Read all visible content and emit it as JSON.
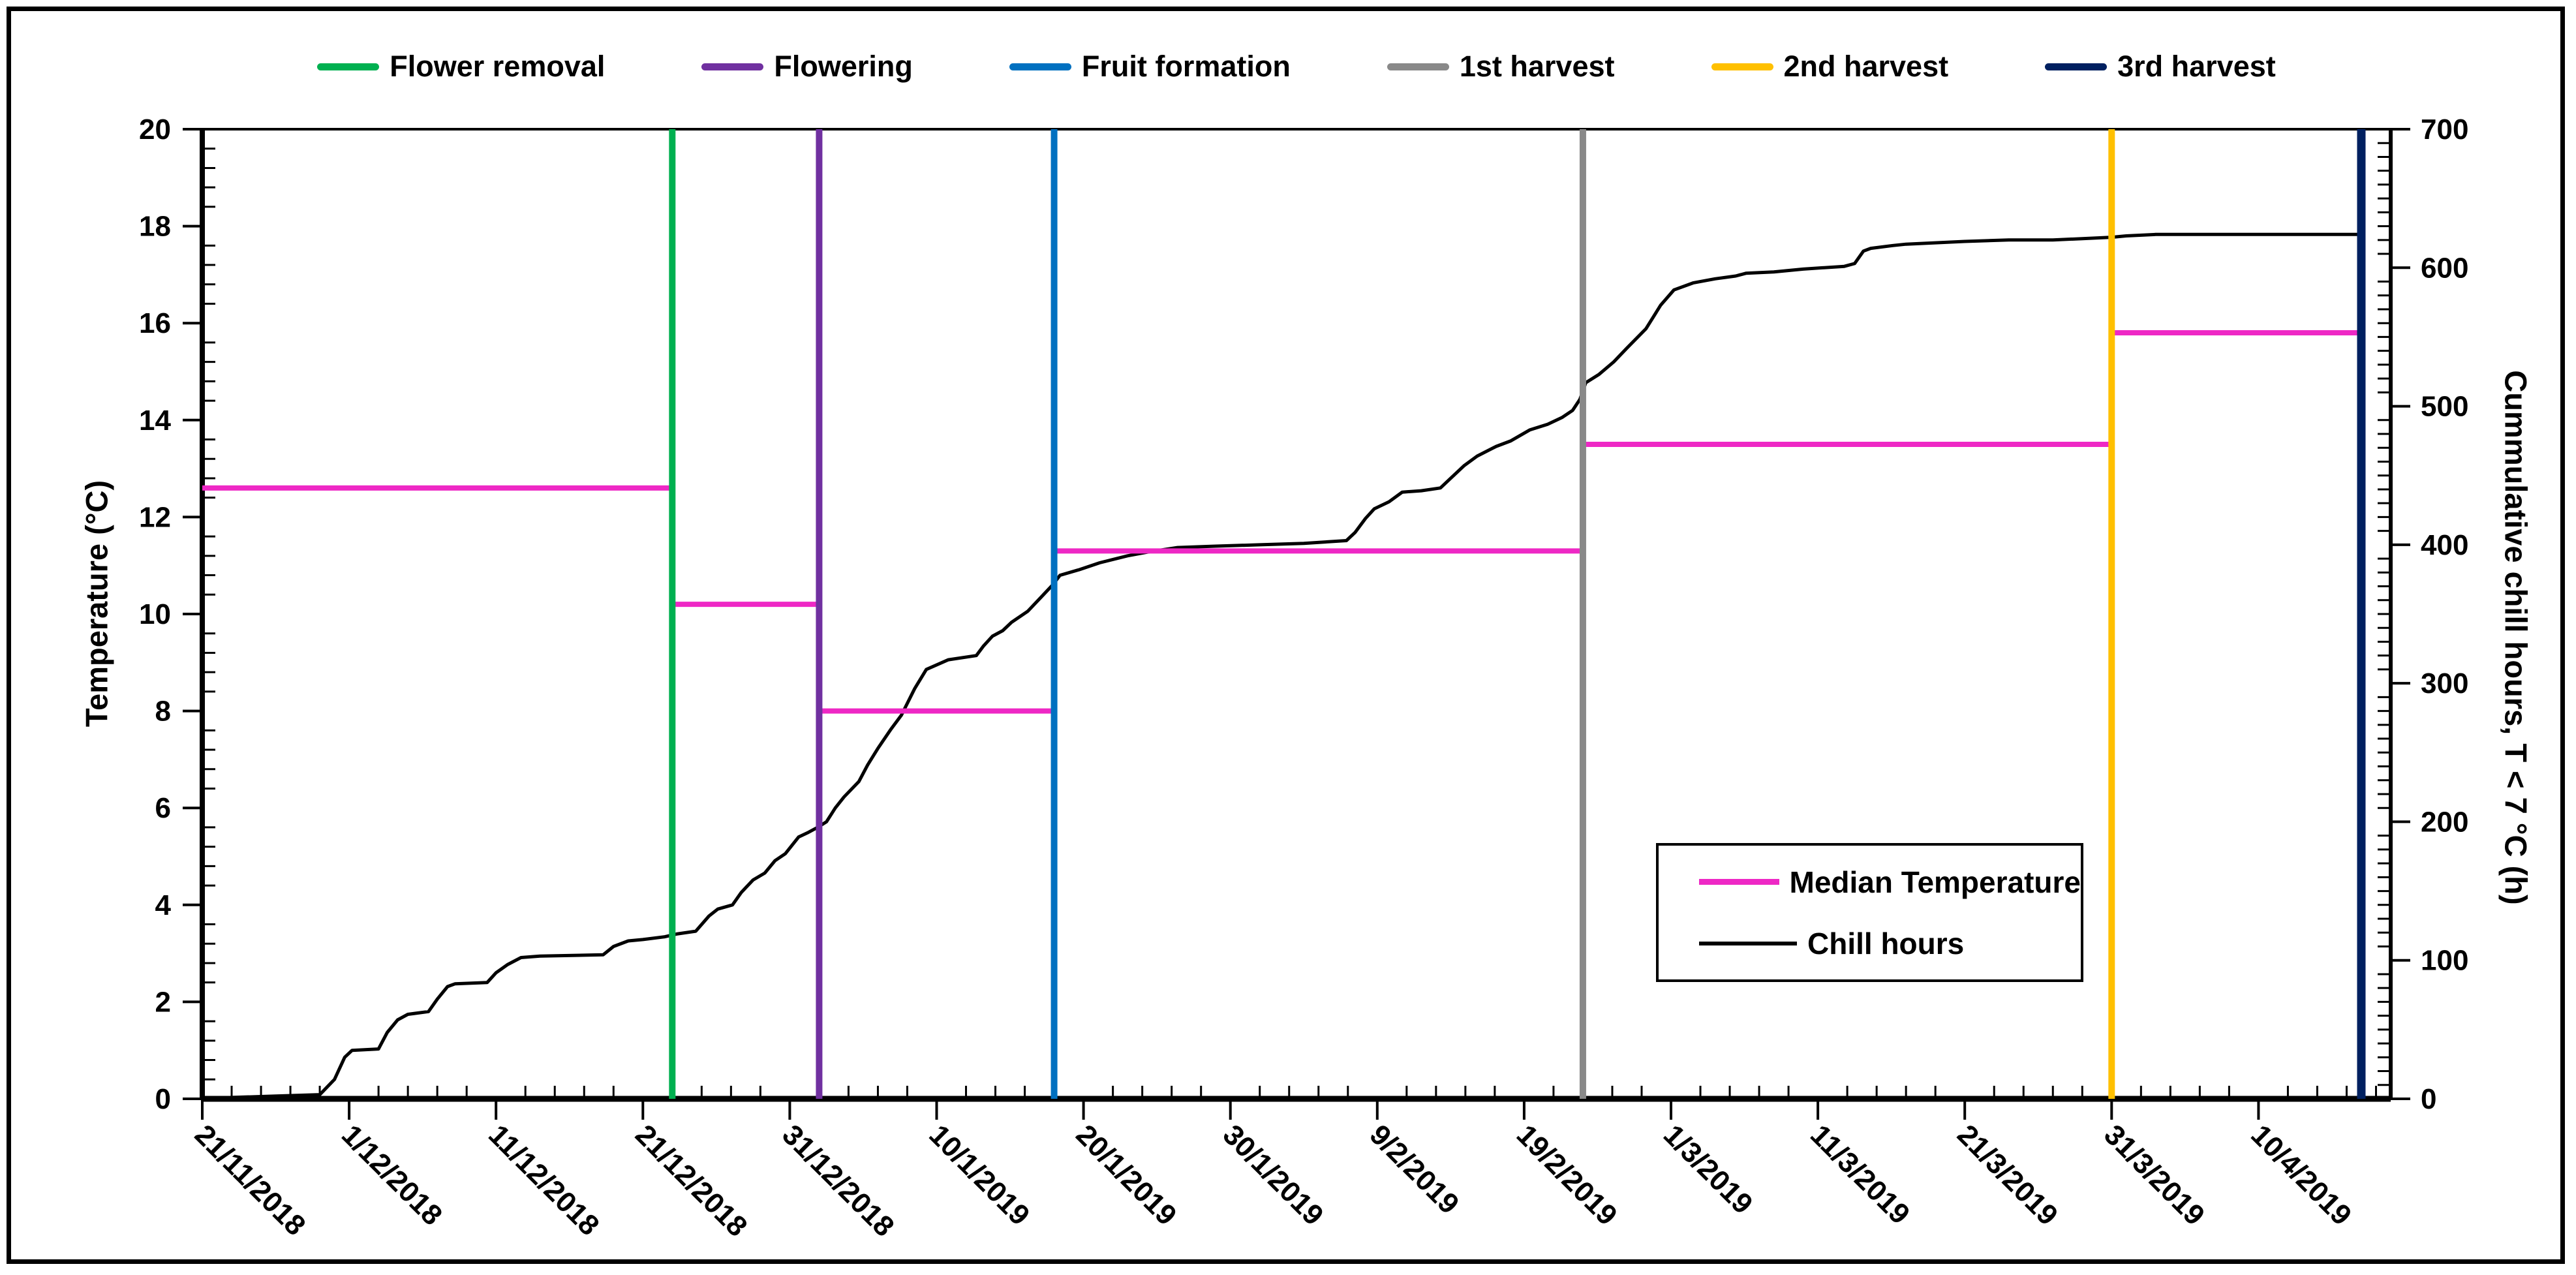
{
  "figure": {
    "top_legend": [
      {
        "label": "Flower removal",
        "color": "#00B050"
      },
      {
        "label": "Flowering",
        "color": "#7030A0"
      },
      {
        "label": "Fruit formation",
        "color": "#0070C0"
      },
      {
        "label": "1st harvest",
        "color": "#898989"
      },
      {
        "label": "2nd harvest",
        "color": "#FFC000"
      },
      {
        "label": "3rd harvest",
        "color": "#002060"
      }
    ],
    "inner_legend": [
      {
        "label": "Median Temperature",
        "color": "#EE28C5",
        "thickness": 9
      },
      {
        "label": "Chill hours",
        "color": "#000000",
        "thickness": 6
      }
    ]
  },
  "chart_data": {
    "type": "line",
    "title": "",
    "x_axis": {
      "tick_labels": [
        "21/11/2018",
        "1/12/2018",
        "11/12/2018",
        "21/12/2018",
        "31/12/2018",
        "10/1/2019",
        "20/1/2019",
        "30/1/2019",
        "9/2/2019",
        "19/2/2019",
        "1/3/2019",
        "11/3/2019",
        "21/3/2019",
        "31/3/2019",
        "10/4/2019"
      ],
      "tick_interval_days": 10,
      "minor_tick_days": 2,
      "domain_days": [
        0,
        149
      ]
    },
    "y_left": {
      "label": "Temperature (°C)",
      "min": 0,
      "max": 20,
      "major_step": 2,
      "minor_step": 0.4,
      "tick_labels": [
        0,
        2,
        4,
        6,
        8,
        10,
        12,
        14,
        16,
        18,
        20
      ]
    },
    "y_right": {
      "label": "Cummulative chill hours, T < 7 °C (h)",
      "min": 0,
      "max": 700,
      "major_step": 100,
      "minor_step": 10,
      "tick_labels": [
        0,
        100,
        200,
        300,
        400,
        500,
        600,
        700
      ]
    },
    "event_lines": [
      {
        "name": "Flower removal",
        "color": "#00B050",
        "day": 32,
        "date_est": "23/12/2018",
        "width": 10
      },
      {
        "name": "Flowering",
        "color": "#7030A0",
        "day": 42,
        "date_est": "2/1/2019",
        "width": 10
      },
      {
        "name": "Fruit formation",
        "color": "#0070C0",
        "day": 58,
        "date_est": "18/1/2019",
        "width": 10
      },
      {
        "name": "1st harvest",
        "color": "#898989",
        "day": 94,
        "date_est": "23/2/2019",
        "width": 10
      },
      {
        "name": "2nd harvest",
        "color": "#FFC000",
        "day": 130,
        "date_est": "31/3/2019",
        "width": 10
      },
      {
        "name": "3rd harvest",
        "color": "#002060",
        "day": 147,
        "date_est": "17/4/2019",
        "width": 13
      }
    ],
    "median_temperature": {
      "name": "Median Temperature",
      "color": "#EE28C5",
      "unit": "°C",
      "segments": [
        {
          "from_day": 0,
          "to_day": 32,
          "value": 12.6
        },
        {
          "from_day": 32,
          "to_day": 42,
          "value": 10.2
        },
        {
          "from_day": 42,
          "to_day": 58,
          "value": 8.0
        },
        {
          "from_day": 58,
          "to_day": 94,
          "value": 11.3
        },
        {
          "from_day": 94,
          "to_day": 130,
          "value": 13.5
        },
        {
          "from_day": 130,
          "to_day": 147,
          "value": 15.8
        }
      ]
    },
    "chill_hours": {
      "name": "Chill hours",
      "color": "#000000",
      "unit": "h",
      "final_total": 624,
      "points": [
        [
          0,
          0
        ],
        [
          2,
          1
        ],
        [
          5,
          2
        ],
        [
          8,
          3
        ],
        [
          9,
          14
        ],
        [
          9.7,
          30
        ],
        [
          10.2,
          35
        ],
        [
          12,
          36
        ],
        [
          12.6,
          48
        ],
        [
          13.3,
          57
        ],
        [
          14,
          61
        ],
        [
          15.4,
          63
        ],
        [
          16,
          72
        ],
        [
          16.7,
          81
        ],
        [
          17.2,
          83
        ],
        [
          19.4,
          84
        ],
        [
          20,
          91
        ],
        [
          20.8,
          97
        ],
        [
          21.7,
          102
        ],
        [
          23,
          103
        ],
        [
          27.3,
          104
        ],
        [
          28,
          110
        ],
        [
          29,
          114
        ],
        [
          30,
          115
        ],
        [
          31.5,
          117
        ],
        [
          32.3,
          119
        ],
        [
          33.6,
          121
        ],
        [
          34.5,
          132
        ],
        [
          35.1,
          137
        ],
        [
          36.1,
          140
        ],
        [
          36.7,
          149
        ],
        [
          37.5,
          158
        ],
        [
          38.3,
          163
        ],
        [
          39,
          172
        ],
        [
          39.7,
          177
        ],
        [
          40.6,
          189
        ],
        [
          41.2,
          192
        ],
        [
          41.9,
          196
        ],
        [
          42.5,
          200
        ],
        [
          43.1,
          210
        ],
        [
          43.7,
          218
        ],
        [
          44.7,
          229
        ],
        [
          45.3,
          241
        ],
        [
          46,
          253
        ],
        [
          46.9,
          267
        ],
        [
          47.6,
          277
        ],
        [
          48.5,
          296
        ],
        [
          49.3,
          310
        ],
        [
          50.8,
          317
        ],
        [
          52.7,
          320
        ],
        [
          53.2,
          327
        ],
        [
          53.8,
          334
        ],
        [
          54.5,
          338
        ],
        [
          55.1,
          344
        ],
        [
          56.2,
          352
        ],
        [
          57.1,
          362
        ],
        [
          57.9,
          371
        ],
        [
          58.4,
          378
        ],
        [
          59.7,
          382
        ],
        [
          61.1,
          387
        ],
        [
          63,
          392
        ],
        [
          64.5,
          395
        ],
        [
          66.4,
          398
        ],
        [
          69,
          399
        ],
        [
          72,
          400
        ],
        [
          75,
          401
        ],
        [
          77.9,
          403
        ],
        [
          78.5,
          409
        ],
        [
          79.2,
          419
        ],
        [
          79.8,
          426
        ],
        [
          80.8,
          431
        ],
        [
          81.7,
          438
        ],
        [
          83,
          439
        ],
        [
          84.3,
          441
        ],
        [
          84.9,
          447
        ],
        [
          85.9,
          457
        ],
        [
          86.8,
          464
        ],
        [
          88.1,
          471
        ],
        [
          89.1,
          475
        ],
        [
          90.4,
          483
        ],
        [
          91.6,
          487
        ],
        [
          92.6,
          492
        ],
        [
          93.3,
          497
        ],
        [
          93.8,
          505
        ],
        [
          94.2,
          517
        ],
        [
          95.1,
          523
        ],
        [
          96.1,
          532
        ],
        [
          97,
          542
        ],
        [
          98.3,
          556
        ],
        [
          99.3,
          573
        ],
        [
          100.2,
          584
        ],
        [
          101.5,
          589
        ],
        [
          103,
          592
        ],
        [
          104.4,
          594
        ],
        [
          105.1,
          596
        ],
        [
          107,
          597
        ],
        [
          109,
          599
        ],
        [
          111.8,
          601
        ],
        [
          112.5,
          603
        ],
        [
          113.1,
          612
        ],
        [
          113.6,
          614
        ],
        [
          115.1,
          616
        ],
        [
          116,
          617
        ],
        [
          118,
          618
        ],
        [
          120,
          619
        ],
        [
          123,
          620
        ],
        [
          126,
          620
        ],
        [
          128,
          621
        ],
        [
          130,
          622
        ],
        [
          131,
          623
        ],
        [
          133,
          624
        ],
        [
          136,
          624
        ],
        [
          140,
          624
        ],
        [
          143,
          624
        ],
        [
          147,
          624
        ]
      ]
    },
    "grid": "off",
    "legend_positions": {
      "events": "top-center",
      "series": "inside-right"
    }
  }
}
